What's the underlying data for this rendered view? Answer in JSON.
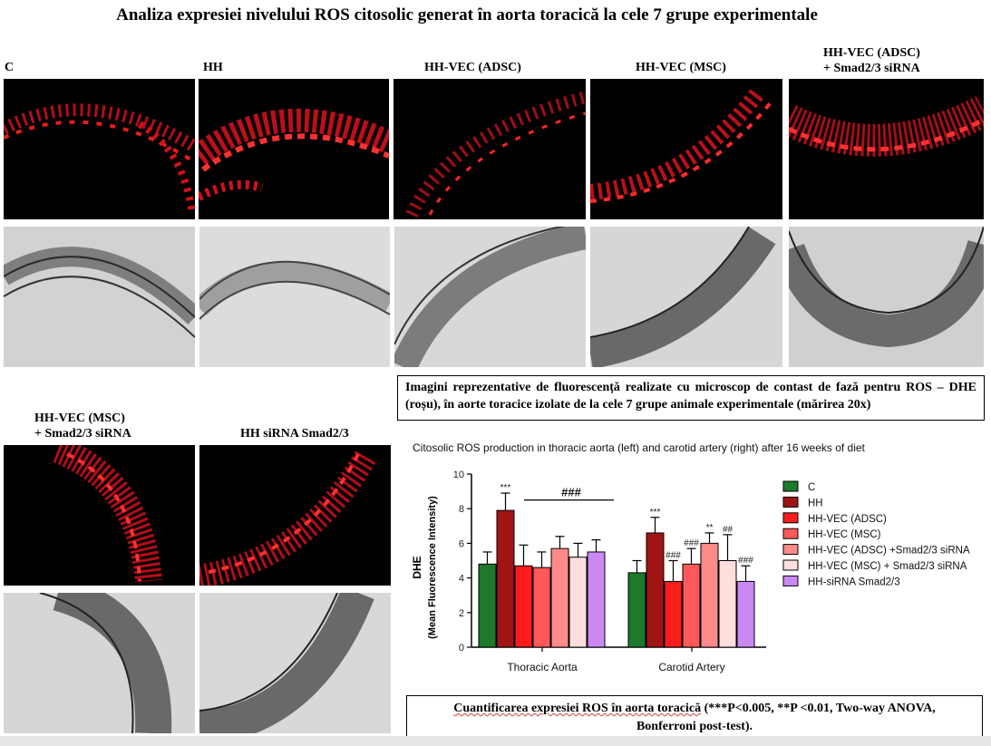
{
  "title": "Analiza expresiei nivelului ROS citosolic generat în aorta toracică la cele 7 grupe experimentale",
  "panels_top": [
    {
      "label": "C"
    },
    {
      "label": "HH"
    },
    {
      "label": "HH-VEC (ADSC)"
    },
    {
      "label": "HH-VEC (MSC)"
    },
    {
      "label_line1": "HH-VEC (ADSC)",
      "label_line2": "+ Smad2/3 siRNA"
    }
  ],
  "panels_bottom": [
    {
      "label_line1": "HH-VEC (MSC)",
      "label_line2": "+ Smad2/3 siRNA"
    },
    {
      "label": "HH siRNA Smad2/3"
    }
  ],
  "caption_images": "Imagini reprezentative de fluorescență realizate cu microscop de contast de fază pentru ROS – DHE (roșu), în aorte toracice izolate de la cele 7 grupe animale experimentale (mărirea 20x)",
  "caption_quant_part1": "Cuantificarea expresiei ROS în aorta toracică",
  "caption_quant_part2": " (***P<0.005, **P <0.01, Two-way ANOVA,",
  "caption_quant_line2": "Bonferroni post-test).",
  "chart_data": {
    "type": "bar",
    "title": "Citosolic ROS production in thoracic aorta (left) and carotid artery (right) after 16 weeks of diet",
    "ylabel_line1": "DHE",
    "ylabel_line2": "(Mean Fluorescence Intensity)",
    "ylim": [
      0,
      10
    ],
    "yticks": [
      "0",
      "2",
      "4",
      "6",
      "8",
      "10"
    ],
    "categories": [
      "Thoracic Aorta",
      "Carotid Artery"
    ],
    "series": [
      {
        "name": "C",
        "color": "#1d7a2a",
        "values": [
          4.8,
          4.3
        ],
        "errors": [
          0.7,
          0.7
        ],
        "annotations": [
          "",
          ""
        ]
      },
      {
        "name": "HH",
        "color": "#a11414",
        "values": [
          7.9,
          6.6
        ],
        "errors": [
          1.0,
          0.9
        ],
        "annotations": [
          "***",
          "***"
        ]
      },
      {
        "name": "HH-VEC (ADSC)",
        "color": "#ff1c1c",
        "values": [
          4.7,
          3.8
        ],
        "errors": [
          1.2,
          1.2
        ],
        "annotations": [
          "",
          "###"
        ]
      },
      {
        "name": "HH-VEC (MSC)",
        "color": "#ff5858",
        "values": [
          4.6,
          4.8
        ],
        "errors": [
          0.9,
          0.9
        ],
        "annotations": [
          "",
          "###"
        ]
      },
      {
        "name": "HH-VEC (ADSC) +Smad2/3 siRNA",
        "color": "#ff8a8a",
        "values": [
          5.7,
          6.0
        ],
        "errors": [
          0.7,
          0.6
        ],
        "annotations": [
          "",
          "**"
        ]
      },
      {
        "name": "HH-VEC (MSC) + Smad2/3 siRNA",
        "color": "#ffdede",
        "values": [
          5.2,
          5.0
        ],
        "errors": [
          0.8,
          1.5
        ],
        "annotations": [
          "",
          "##"
        ]
      },
      {
        "name": "HH-siRNA Smad2/3",
        "color": "#cc88f2",
        "values": [
          5.5,
          3.8
        ],
        "errors": [
          0.7,
          0.9
        ],
        "annotations": [
          "",
          "###"
        ]
      }
    ],
    "bracket_label": "###"
  }
}
